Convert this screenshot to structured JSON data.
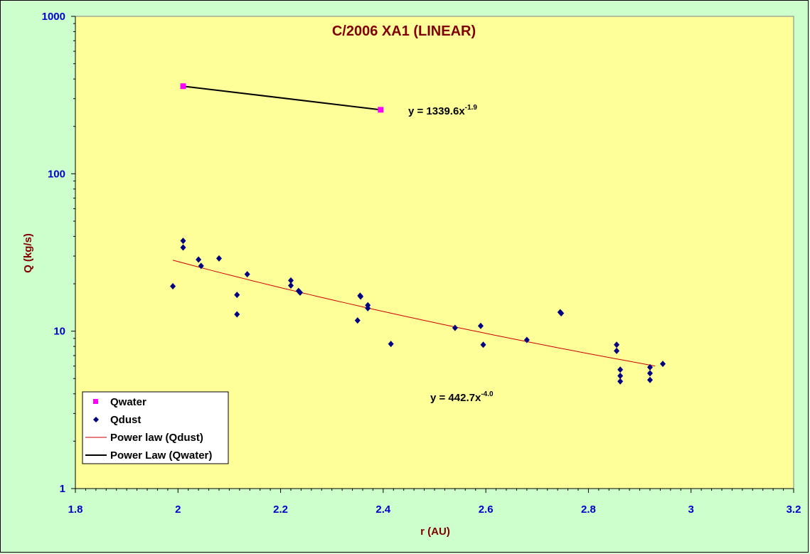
{
  "chart_data": {
    "type": "scatter",
    "title": "C/2006 XA1 (LINEAR)",
    "xlabel": "r (AU)",
    "ylabel": "Q (kg/s)",
    "xlim": [
      1.8,
      3.2
    ],
    "ylim": [
      1,
      1000
    ],
    "yscale": "log",
    "x_ticks": [
      "1.8",
      "2",
      "2.2",
      "2.4",
      "2.6",
      "2.8",
      "3",
      "3.2"
    ],
    "y_ticks": [
      "1",
      "10",
      "100",
      "1000"
    ],
    "grid": false,
    "legend_position": "bottom-left",
    "series": [
      {
        "name": "Qwater",
        "marker": "square",
        "color": "#ff00ff",
        "points": [
          [
            2.01,
            360
          ],
          [
            2.395,
            255
          ]
        ]
      },
      {
        "name": "Qdust",
        "marker": "diamond",
        "color": "#000080",
        "points": [
          [
            1.99,
            19.3
          ],
          [
            2.01,
            37.5
          ],
          [
            2.01,
            34.0
          ],
          [
            2.04,
            28.5
          ],
          [
            2.045,
            26.0
          ],
          [
            2.08,
            29.0
          ],
          [
            2.115,
            17.0
          ],
          [
            2.115,
            12.8
          ],
          [
            2.135,
            23.0
          ],
          [
            2.22,
            21.0
          ],
          [
            2.22,
            19.5
          ],
          [
            2.235,
            18.0
          ],
          [
            2.238,
            17.6
          ],
          [
            2.35,
            11.7
          ],
          [
            2.355,
            16.8
          ],
          [
            2.356,
            16.6
          ],
          [
            2.37,
            14.6
          ],
          [
            2.37,
            14.0
          ],
          [
            2.415,
            8.3
          ],
          [
            2.54,
            10.5
          ],
          [
            2.59,
            10.8
          ],
          [
            2.595,
            8.2
          ],
          [
            2.68,
            8.8
          ],
          [
            2.745,
            13.2
          ],
          [
            2.747,
            13.0
          ],
          [
            2.855,
            8.2
          ],
          [
            2.855,
            7.5
          ],
          [
            2.862,
            5.7
          ],
          [
            2.862,
            5.2
          ],
          [
            2.862,
            4.8
          ],
          [
            2.92,
            5.9
          ],
          [
            2.92,
            5.4
          ],
          [
            2.92,
            4.9
          ],
          [
            2.945,
            6.2
          ]
        ]
      },
      {
        "name": "Power law (Qdust)",
        "type": "line",
        "color": "#cc0000",
        "x_range": [
          1.99,
          2.93
        ],
        "equation": {
          "prefix": "y = 442.7x",
          "exponent": "-4.0"
        }
      },
      {
        "name": "Power Law (Qwater)",
        "type": "line",
        "color": "#000000",
        "points": [
          [
            2.01,
            360
          ],
          [
            2.395,
            255
          ]
        ],
        "equation": {
          "prefix": "y = 1339.6x",
          "exponent": "-1.9"
        }
      }
    ]
  },
  "colors": {
    "background": "#ccffcc",
    "plot_area": "#ffff99",
    "tick_text": "#0000cc",
    "label_text": "#800000"
  }
}
